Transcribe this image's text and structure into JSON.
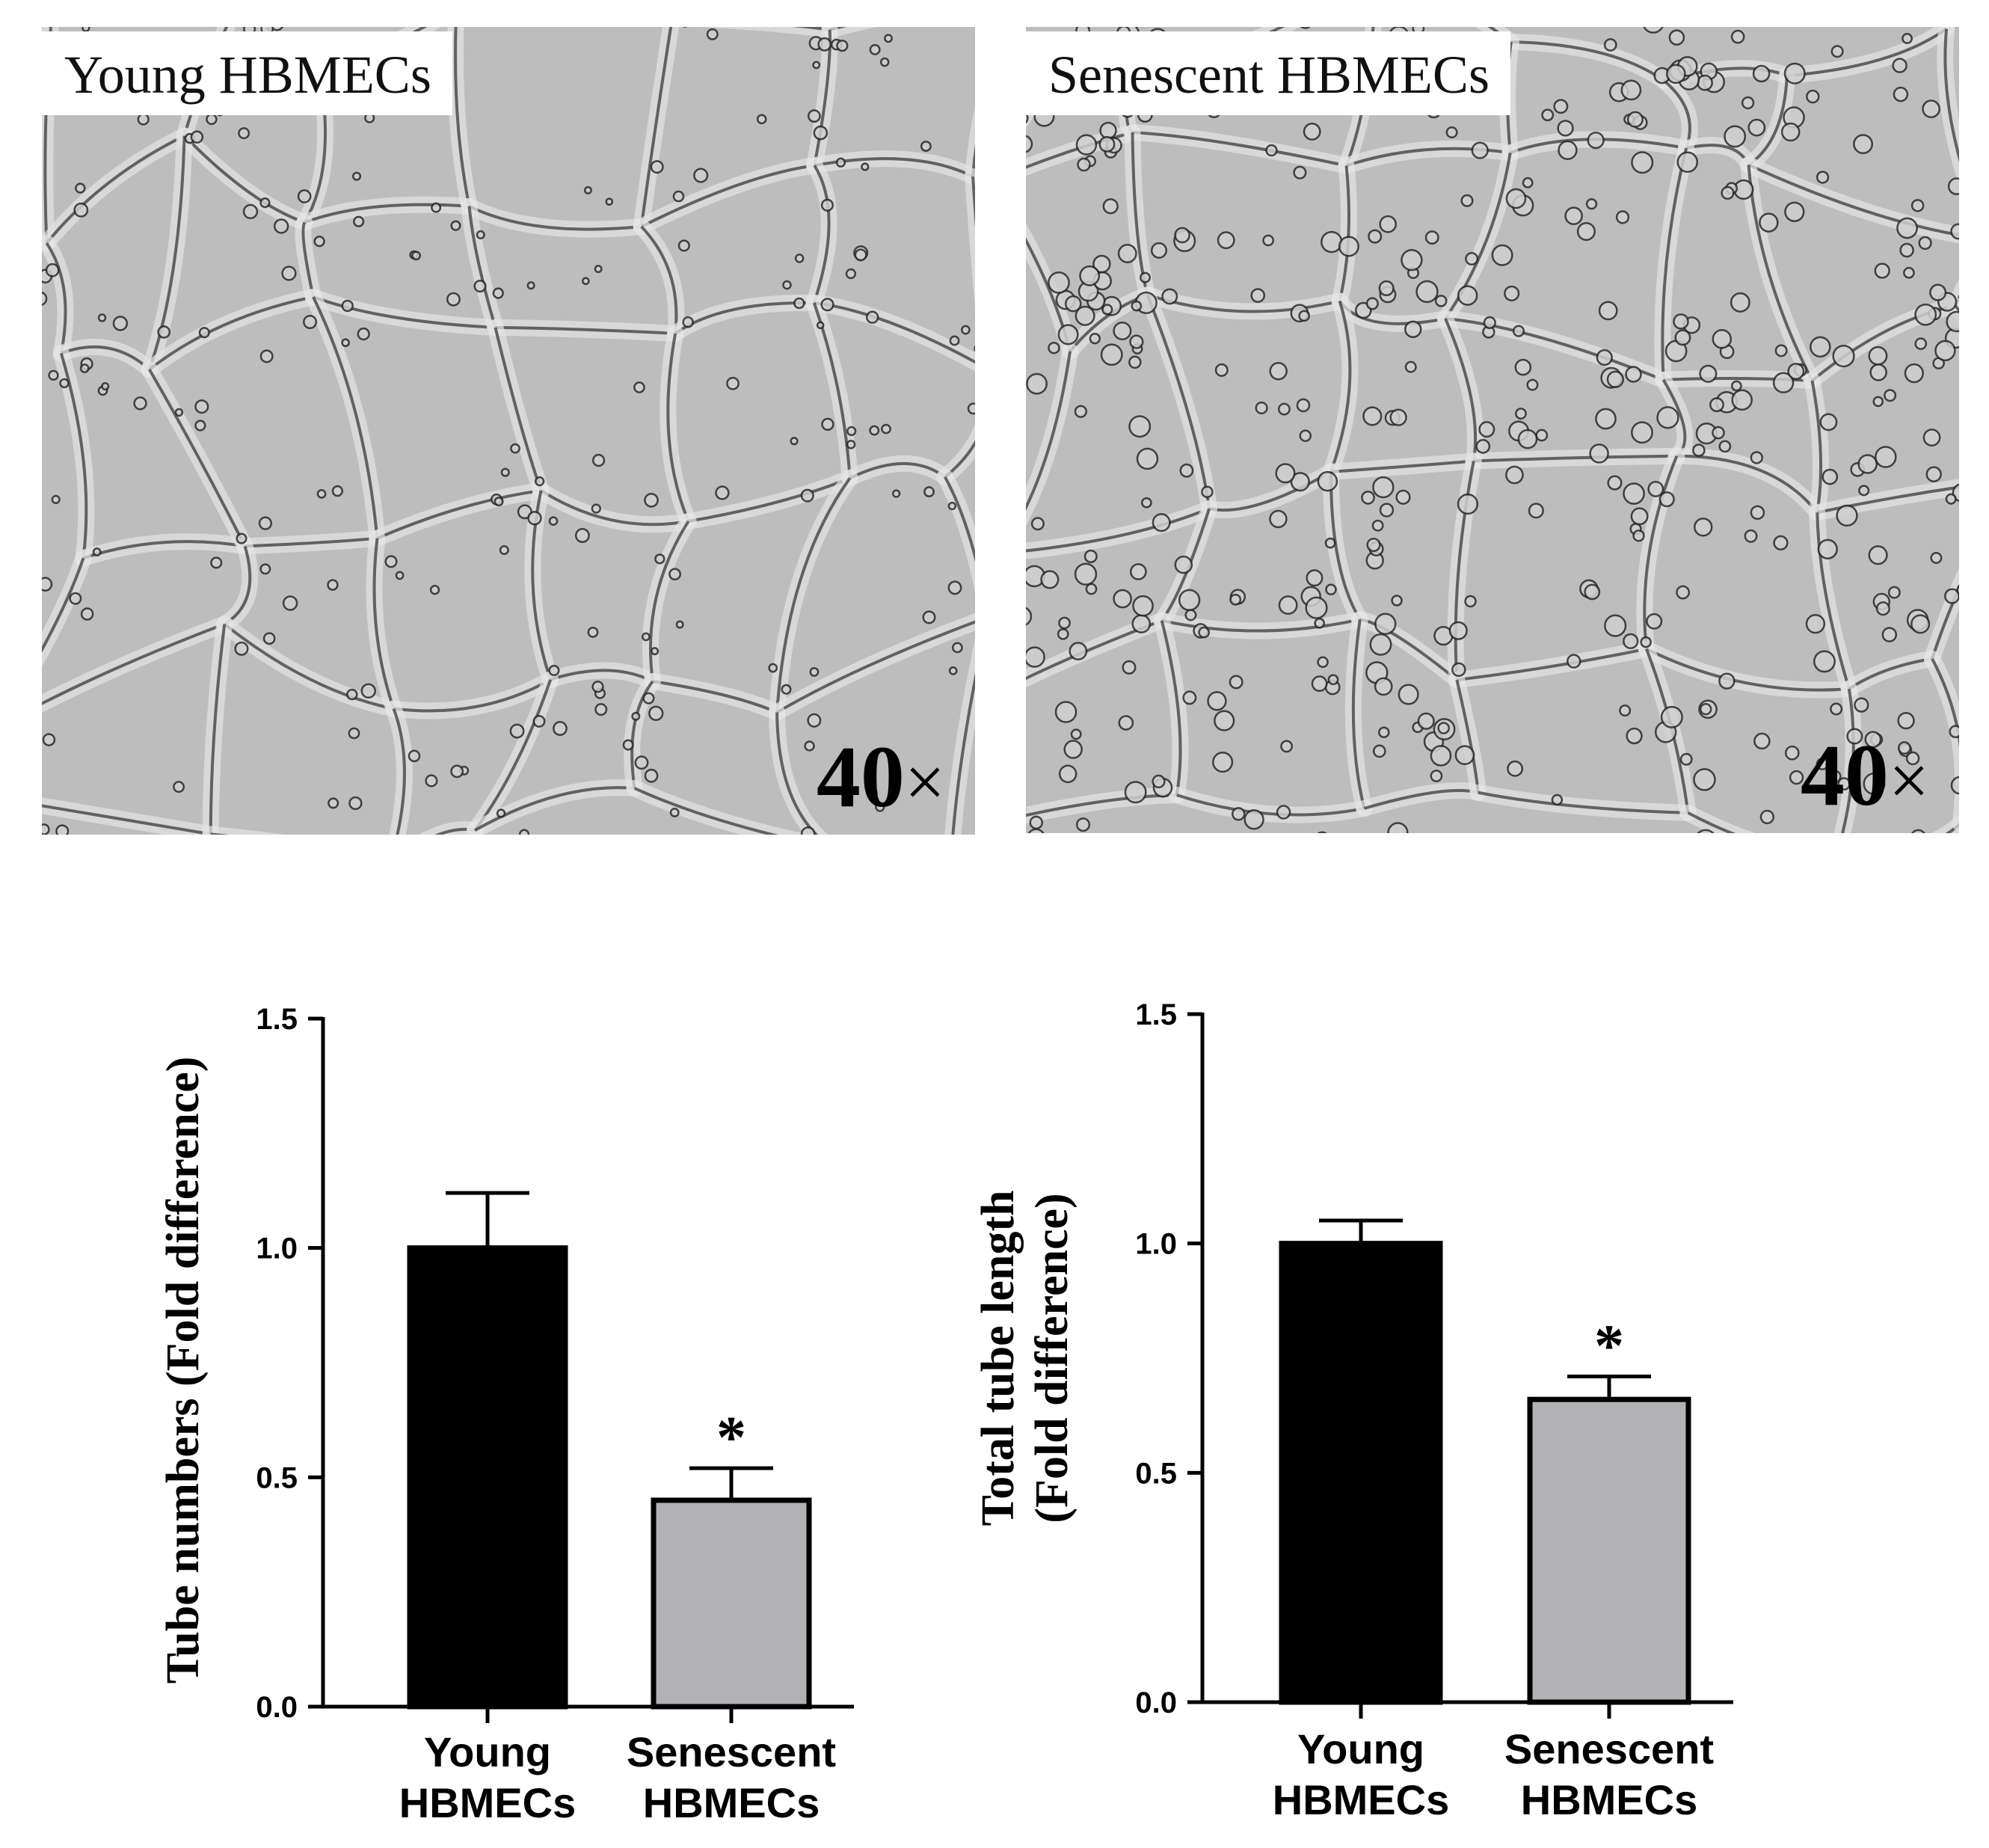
{
  "panels": {
    "young": {
      "label": "Young HBMECs",
      "magnification": "40"
    },
    "senescent": {
      "label": "Senescent HBMECs",
      "magnification": "40"
    },
    "magnification_symbol": "×"
  },
  "colors": {
    "young_bar": "#000000",
    "senescent_bar": "#b2b2b5",
    "micrograph_background": "#bdbdbd",
    "micrograph_lines": "#3a3a3a"
  },
  "chart_data": [
    {
      "type": "bar",
      "ylabel": "Tube numbers (Fold difference)",
      "ylim": [
        0,
        1.5
      ],
      "yticks": [
        "0.0",
        "0.5",
        "1.0",
        "1.5"
      ],
      "categories": [
        [
          "Young",
          "HBMECs"
        ],
        [
          "Senescent",
          "HBMECs"
        ]
      ],
      "values": [
        1.0,
        0.45
      ],
      "error": [
        0.12,
        0.07
      ],
      "significance": [
        "",
        "*"
      ]
    },
    {
      "type": "bar",
      "ylabel": [
        "Total tube length",
        "(Fold difference)"
      ],
      "ylim": [
        0,
        1.5
      ],
      "yticks": [
        "0.0",
        "0.5",
        "1.0",
        "1.5"
      ],
      "categories": [
        [
          "Young",
          "HBMECs"
        ],
        [
          "Senescent",
          "HBMECs"
        ]
      ],
      "values": [
        1.0,
        0.66
      ],
      "error": [
        0.05,
        0.05
      ],
      "significance": [
        "",
        "*"
      ]
    }
  ]
}
